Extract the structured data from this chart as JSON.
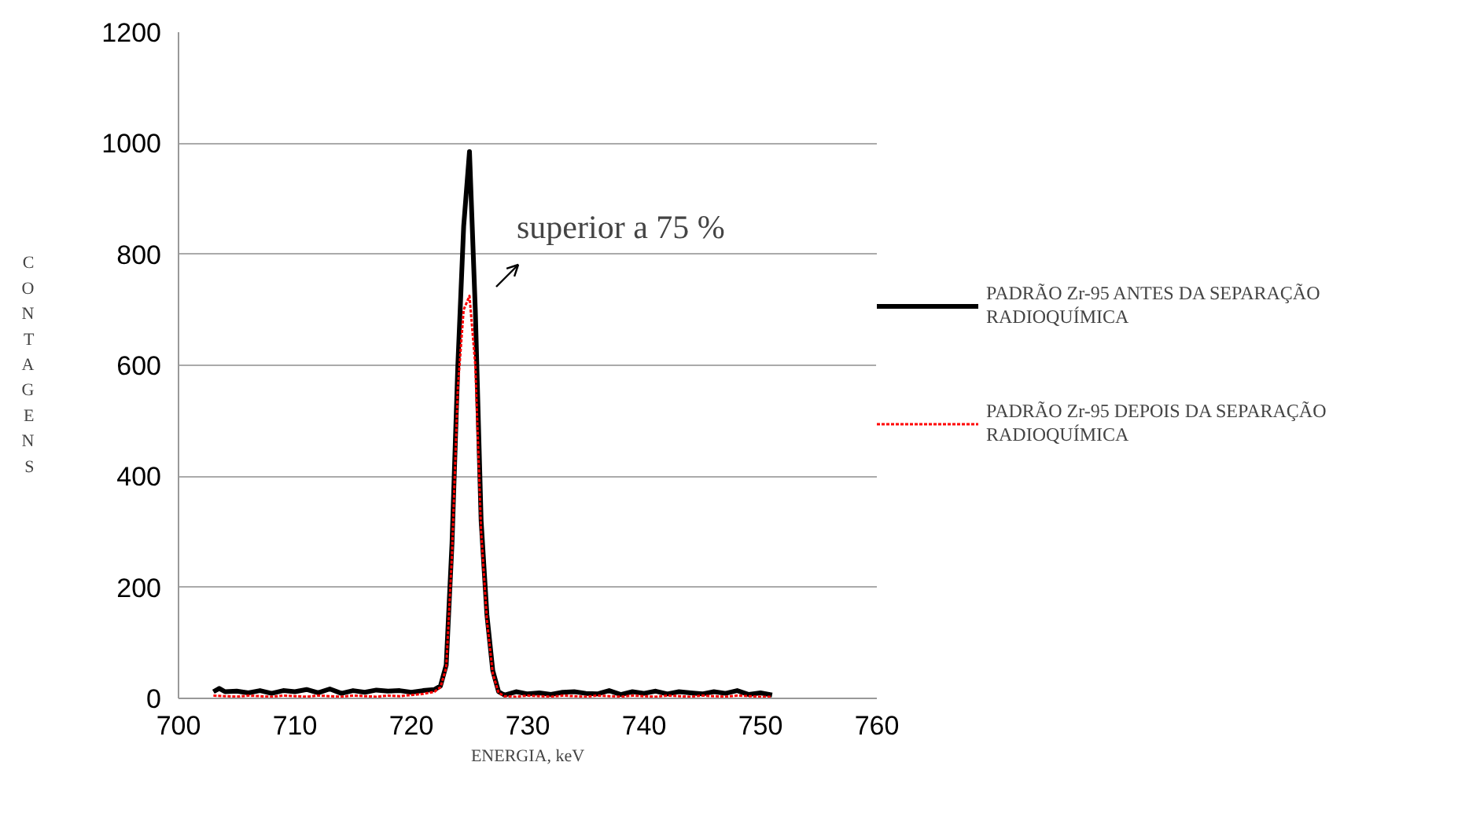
{
  "chart_data": {
    "type": "line",
    "xlabel": "ENERGIA, keV",
    "ylabel": "CONTAGENS",
    "xlim": [
      700,
      760
    ],
    "xticks": [
      700,
      710,
      720,
      730,
      740,
      750,
      760
    ],
    "ylim": [
      0,
      1200
    ],
    "yticks": [
      0,
      200,
      400,
      600,
      800,
      1000,
      1200
    ],
    "grid": "y",
    "legend": "right",
    "marker": "none",
    "annotations": [
      "superior a  75 %"
    ],
    "series": [
      {
        "name": "PADRÃO Zr-95 ANTES DA SEPARAÇÃO RADIOQUÍMICA",
        "color": "#000000",
        "line_style": "solid",
        "x": [
          703,
          703.5,
          704,
          705,
          706,
          707,
          708,
          709,
          710,
          711,
          712,
          713,
          714,
          715,
          716,
          717,
          718,
          719,
          720,
          721,
          722,
          722.5,
          723,
          723.5,
          724,
          724.5,
          725,
          725.5,
          726,
          726.5,
          727,
          727.5,
          728,
          729,
          730,
          731,
          732,
          733,
          734,
          735,
          736,
          737,
          738,
          739,
          740,
          741,
          742,
          743,
          744,
          745,
          746,
          747,
          748,
          749,
          750,
          751
        ],
        "values": [
          12,
          18,
          12,
          13,
          10,
          14,
          9,
          14,
          12,
          16,
          10,
          17,
          9,
          14,
          11,
          15,
          13,
          14,
          11,
          14,
          16,
          22,
          60,
          280,
          600,
          850,
          985,
          700,
          320,
          150,
          50,
          12,
          6,
          12,
          8,
          10,
          7,
          11,
          12,
          9,
          8,
          14,
          7,
          12,
          9,
          13,
          8,
          12,
          10,
          8,
          12,
          9,
          14,
          7,
          10,
          6
        ]
      },
      {
        "name": "PADRÃO Zr-95 DEPOIS DA SEPARAÇÃO RADIOQUÍMICA",
        "color": "#ff0000",
        "line_style": "dotted",
        "x": [
          703,
          704,
          705,
          706,
          707,
          708,
          709,
          710,
          711,
          712,
          713,
          714,
          715,
          716,
          717,
          718,
          719,
          720,
          721,
          722,
          722.5,
          723,
          723.5,
          724,
          724.5,
          725,
          725.5,
          726,
          726.5,
          727,
          727.5,
          728,
          729,
          730,
          731,
          732,
          733,
          734,
          735,
          736,
          737,
          738,
          739,
          740,
          741,
          742,
          743,
          744,
          745,
          746,
          747,
          748,
          749,
          750,
          751
        ],
        "values": [
          5,
          4,
          3,
          5,
          4,
          3,
          5,
          4,
          3,
          5,
          4,
          3,
          5,
          4,
          3,
          5,
          4,
          6,
          8,
          12,
          20,
          55,
          260,
          560,
          700,
          725,
          600,
          300,
          140,
          45,
          10,
          4,
          3,
          5,
          4,
          3,
          5,
          4,
          3,
          5,
          4,
          3,
          5,
          4,
          3,
          5,
          4,
          3,
          5,
          4,
          3,
          5,
          4,
          3,
          3
        ]
      }
    ]
  }
}
